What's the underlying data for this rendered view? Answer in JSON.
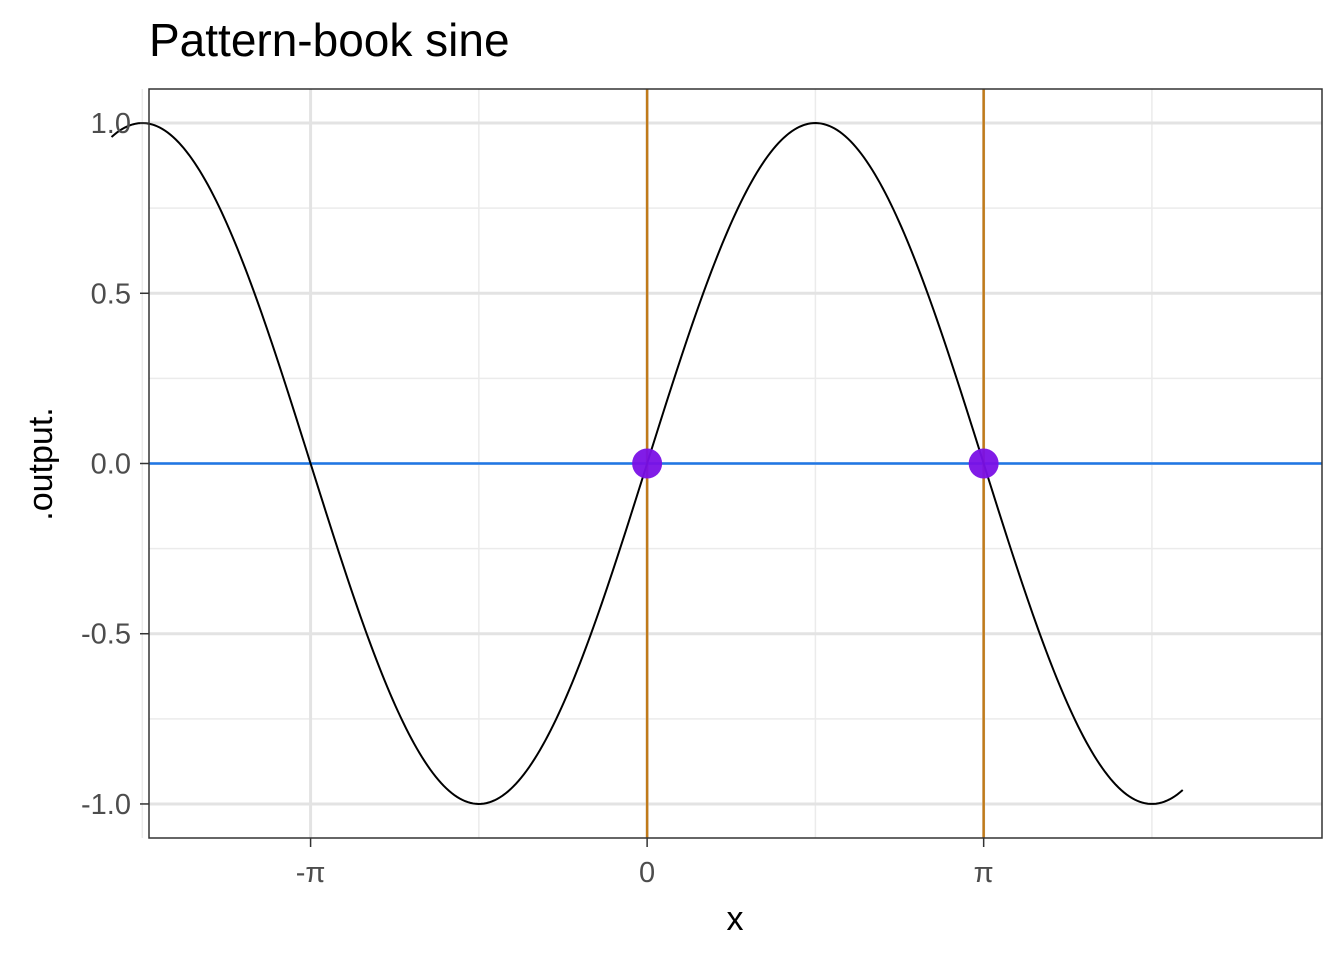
{
  "chart_data": {
    "type": "line",
    "title": "Pattern-book sine",
    "xlabel": "x",
    "ylabel": ".output.",
    "xlim": [
      -4.65,
      6.3
    ],
    "ylim": [
      -1.1,
      1.1
    ],
    "x_ticks": [
      {
        "value": -3.14159,
        "label": "-π"
      },
      {
        "value": 0,
        "label": "0"
      },
      {
        "value": 3.14159,
        "label": "π"
      }
    ],
    "x_minor_ticks": [
      -4.7124,
      -1.5708,
      1.5708,
      4.7124
    ],
    "y_ticks": [
      {
        "value": -1.0,
        "label": "-1.0"
      },
      {
        "value": -0.5,
        "label": "-0.5"
      },
      {
        "value": 0.0,
        "label": "0.0"
      },
      {
        "value": 0.5,
        "label": "0.5"
      },
      {
        "value": 1.0,
        "label": "1.0"
      }
    ],
    "y_minor_ticks": [
      -0.75,
      -0.25,
      0.25,
      0.75
    ],
    "grid": true,
    "series": [
      {
        "function": "sin(x)",
        "x_range": [
          -5.0,
          5.0
        ],
        "color": "#000000"
      }
    ],
    "reference_lines": {
      "horizontal": [
        {
          "y": 0,
          "color": "#1f77e6"
        }
      ],
      "vertical": [
        {
          "x": 0,
          "color": "#c07a1a"
        },
        {
          "x": 3.14159,
          "color": "#c07a1a"
        }
      ]
    },
    "points": [
      {
        "x": 0,
        "y": 0
      },
      {
        "x": 3.14159,
        "y": 0
      }
    ],
    "point_color": "#7a10e6"
  }
}
